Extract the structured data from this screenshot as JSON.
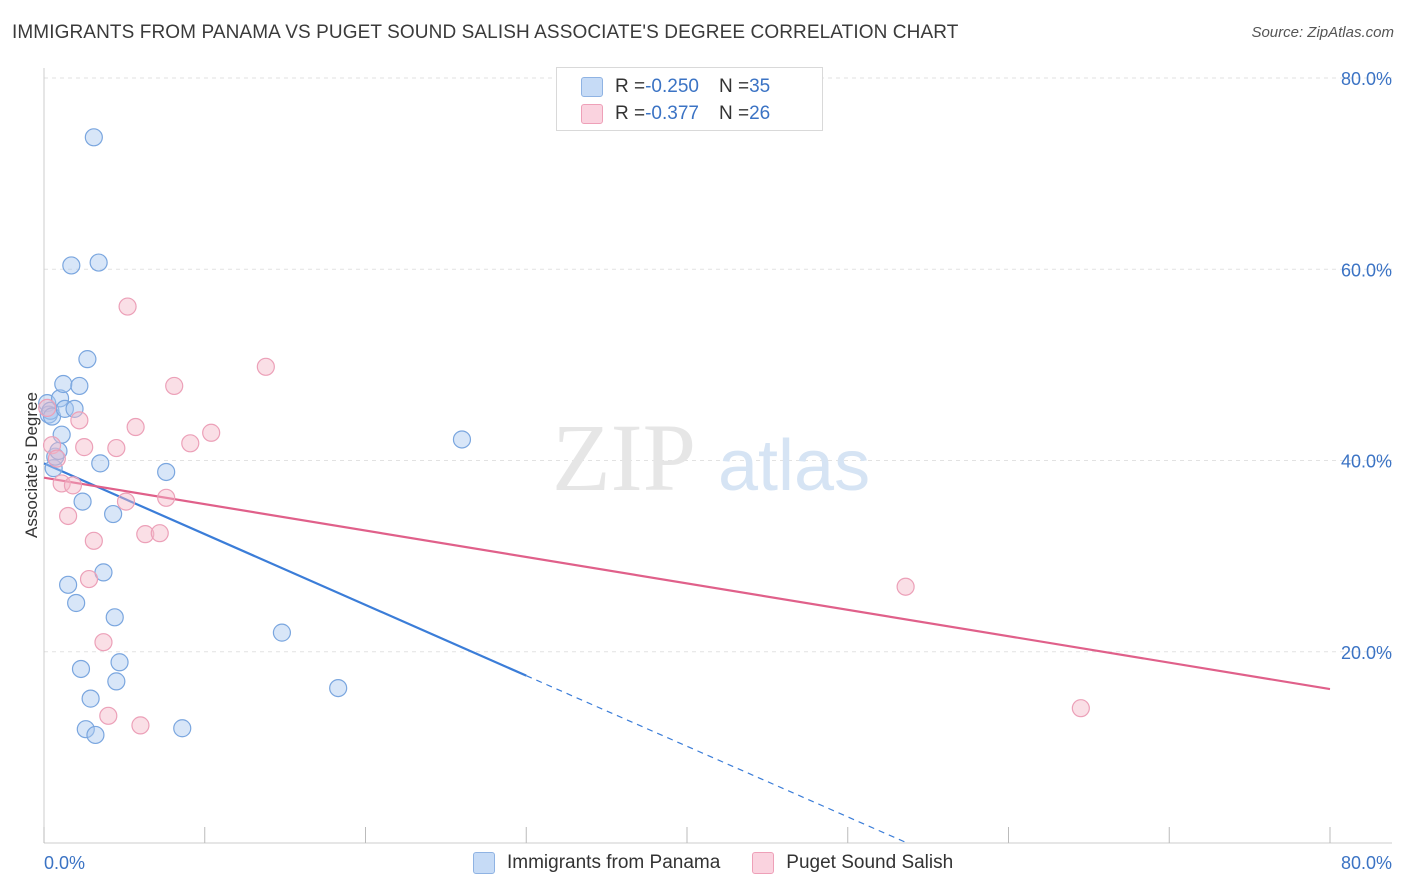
{
  "title": "IMMIGRANTS FROM PANAMA VS PUGET SOUND SALISH ASSOCIATE'S DEGREE CORRELATION CHART",
  "source": "Source: ZipAtlas.com",
  "watermark": {
    "zip": "ZIP",
    "atlas": "atlas"
  },
  "legend_top": {
    "rows": [
      {
        "r_label": "R = ",
        "r_value": "-0.250",
        "n_label": "N = ",
        "n_value": "35",
        "color": "#a8c8f0"
      },
      {
        "r_label": "R = ",
        "r_value": "-0.377",
        "n_label": "N = ",
        "n_value": "26",
        "color": "#f4b8c8"
      }
    ]
  },
  "bottom_legend": [
    {
      "label": "Immigrants from Panama",
      "color": "#a8c8f0"
    },
    {
      "label": "Puget Sound Salish",
      "color": "#f4b8c8"
    }
  ],
  "chart_data": {
    "type": "scatter",
    "title": "IMMIGRANTS FROM PANAMA VS PUGET SOUND SALISH ASSOCIATE'S DEGREE CORRELATION CHART",
    "xlabel": "",
    "ylabel": "Associate's Degree",
    "xlim": [
      0,
      80
    ],
    "ylim": [
      0,
      80
    ],
    "x_tick_labels": [
      "0.0%",
      "80.0%"
    ],
    "y_ticks": [
      20,
      40,
      60,
      80
    ],
    "y_tick_labels": [
      "20.0%",
      "40.0%",
      "60.0%",
      "80.0%"
    ],
    "grid": true,
    "series": [
      {
        "name": "Immigrants from Panama",
        "color": "#3b7dd8",
        "fill": "#a8c8f0",
        "points": [
          [
            0.2,
            46.0
          ],
          [
            0.3,
            44.8
          ],
          [
            0.4,
            45.2
          ],
          [
            0.5,
            44.6
          ],
          [
            0.6,
            39.2
          ],
          [
            0.7,
            40.4
          ],
          [
            0.9,
            41.0
          ],
          [
            1.0,
            46.5
          ],
          [
            1.1,
            42.7
          ],
          [
            1.2,
            48.0
          ],
          [
            1.3,
            45.4
          ],
          [
            1.5,
            27.0
          ],
          [
            1.7,
            60.4
          ],
          [
            1.9,
            45.4
          ],
          [
            2.0,
            25.1
          ],
          [
            2.2,
            47.8
          ],
          [
            2.3,
            18.2
          ],
          [
            2.4,
            35.7
          ],
          [
            2.6,
            11.9
          ],
          [
            2.7,
            50.6
          ],
          [
            2.9,
            15.1
          ],
          [
            3.1,
            73.8
          ],
          [
            3.2,
            11.3
          ],
          [
            3.4,
            60.7
          ],
          [
            3.5,
            39.7
          ],
          [
            3.7,
            28.3
          ],
          [
            4.3,
            34.4
          ],
          [
            4.4,
            23.6
          ],
          [
            4.5,
            16.9
          ],
          [
            4.7,
            18.9
          ],
          [
            7.6,
            38.8
          ],
          [
            8.6,
            12.0
          ],
          [
            14.8,
            22.0
          ],
          [
            18.3,
            16.2
          ],
          [
            26.0,
            42.2
          ]
        ],
        "trend": {
          "x": [
            0,
            30
          ],
          "y": [
            39.7,
            17.5
          ]
        },
        "trend_dashed": {
          "x": [
            30,
            56
          ],
          "y": [
            17.5,
            -1.7
          ]
        }
      },
      {
        "name": "Puget Sound Salish",
        "color": "#e0608a",
        "fill": "#f4b8c8",
        "points": [
          [
            0.2,
            45.5
          ],
          [
            0.5,
            41.6
          ],
          [
            0.8,
            40.2
          ],
          [
            1.1,
            37.6
          ],
          [
            1.5,
            34.2
          ],
          [
            1.8,
            37.4
          ],
          [
            2.2,
            44.2
          ],
          [
            2.5,
            41.4
          ],
          [
            2.8,
            27.6
          ],
          [
            3.1,
            31.6
          ],
          [
            3.7,
            21.0
          ],
          [
            4.0,
            13.3
          ],
          [
            4.5,
            41.3
          ],
          [
            5.1,
            35.7
          ],
          [
            5.2,
            56.1
          ],
          [
            5.7,
            43.5
          ],
          [
            6.0,
            12.3
          ],
          [
            6.3,
            32.3
          ],
          [
            7.2,
            32.4
          ],
          [
            7.6,
            36.1
          ],
          [
            8.1,
            47.8
          ],
          [
            9.1,
            41.8
          ],
          [
            10.4,
            42.9
          ],
          [
            13.8,
            49.8
          ],
          [
            53.6,
            26.8
          ],
          [
            64.5,
            14.1
          ]
        ],
        "trend": {
          "x": [
            0,
            80
          ],
          "y": [
            38.2,
            16.1
          ]
        }
      }
    ]
  }
}
